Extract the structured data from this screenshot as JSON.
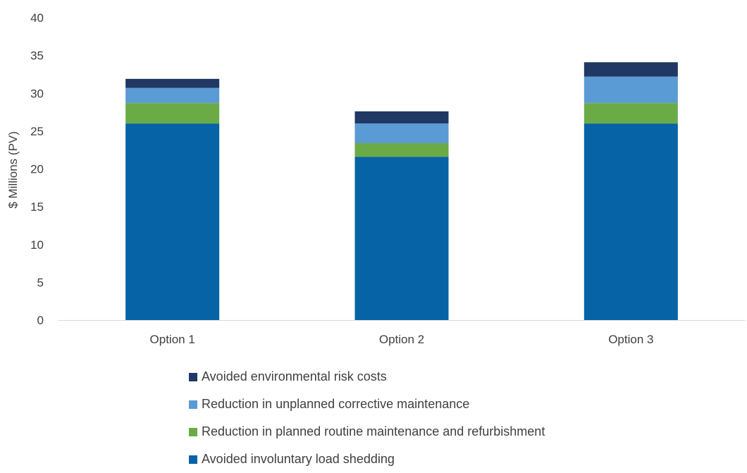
{
  "chart_data": {
    "type": "bar",
    "stacked": true,
    "categories": [
      "Option 1",
      "Option 2",
      "Option 3"
    ],
    "ylabel": "$ Millions (PV)",
    "xlabel": "",
    "ylim": [
      0,
      40
    ],
    "yticks": [
      0,
      5,
      10,
      15,
      20,
      25,
      30,
      35,
      40
    ],
    "grid": false,
    "legend_position": "bottom",
    "series": [
      {
        "name": "Avoided involuntary load shedding",
        "color": "#0563A6",
        "values": [
          26.0,
          21.6,
          26.0
        ]
      },
      {
        "name": "Reduction in planned routine maintenance and refurbishment",
        "color": "#6BAB45",
        "values": [
          2.7,
          1.8,
          2.7
        ]
      },
      {
        "name": "Reduction in unplanned corrective maintenance",
        "color": "#5B9BD5",
        "values": [
          2.0,
          2.6,
          3.5
        ]
      },
      {
        "name": "Avoided environmental risk costs",
        "color": "#1F3864",
        "values": [
          1.2,
          1.6,
          1.9
        ]
      }
    ],
    "legend_order": [
      3,
      2,
      1,
      0
    ]
  }
}
